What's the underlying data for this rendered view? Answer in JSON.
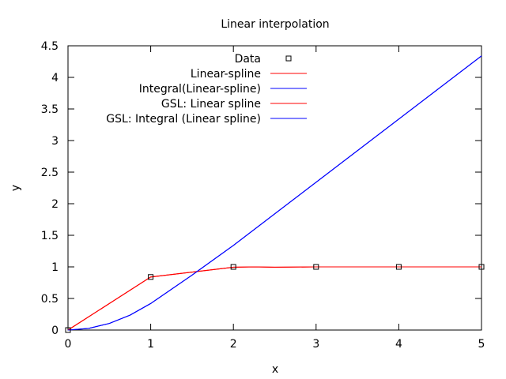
{
  "chart_data": {
    "type": "line",
    "title": "Linear interpolation",
    "xlabel": "x",
    "ylabel": "y",
    "xlim": [
      0,
      5
    ],
    "ylim": [
      0,
      4.5
    ],
    "xticks": [
      "0",
      "1",
      "2",
      "3",
      "4",
      "5"
    ],
    "yticks": [
      "0",
      "0.5",
      "1",
      "1.5",
      "2",
      "2.5",
      "3",
      "3.5",
      "4",
      "4.5"
    ],
    "grid": false,
    "legend_position": "top-left",
    "series": [
      {
        "name": "Data",
        "kind": "points",
        "marker": "open-square",
        "color": "#000000",
        "x": [
          0,
          1,
          2,
          3,
          4,
          5
        ],
        "y": [
          0,
          0.84,
          1.0,
          1.0,
          1.0,
          1.0
        ]
      },
      {
        "name": "Linear-spline",
        "kind": "line",
        "color": "#ff0000",
        "x": [
          0,
          1,
          2,
          2.25,
          2.5,
          3,
          4,
          5
        ],
        "y": [
          0,
          0.84,
          0.995,
          1.0,
          0.995,
          1.0,
          1.0,
          1.0
        ]
      },
      {
        "name": "Integral(Linear-spline)",
        "kind": "line",
        "color": "#0000ff",
        "x": [
          0,
          0.25,
          0.5,
          0.75,
          1,
          1.5,
          2,
          3,
          4,
          5
        ],
        "y": [
          0,
          0.026,
          0.105,
          0.236,
          0.42,
          0.87,
          1.34,
          2.34,
          3.34,
          4.34
        ]
      },
      {
        "name": "GSL: Linear spline",
        "kind": "line",
        "color": "#ff0000",
        "x": [
          0,
          1,
          2,
          2.25,
          2.5,
          3,
          4,
          5
        ],
        "y": [
          0,
          0.84,
          0.995,
          1.0,
          0.995,
          1.0,
          1.0,
          1.0
        ]
      },
      {
        "name": "GSL: Integral (Linear spline)",
        "kind": "line",
        "color": "#0000ff",
        "x": [
          0,
          0.25,
          0.5,
          0.75,
          1,
          1.5,
          2,
          3,
          4,
          5
        ],
        "y": [
          0,
          0.026,
          0.105,
          0.236,
          0.42,
          0.87,
          1.34,
          2.34,
          3.34,
          4.34
        ]
      }
    ]
  }
}
